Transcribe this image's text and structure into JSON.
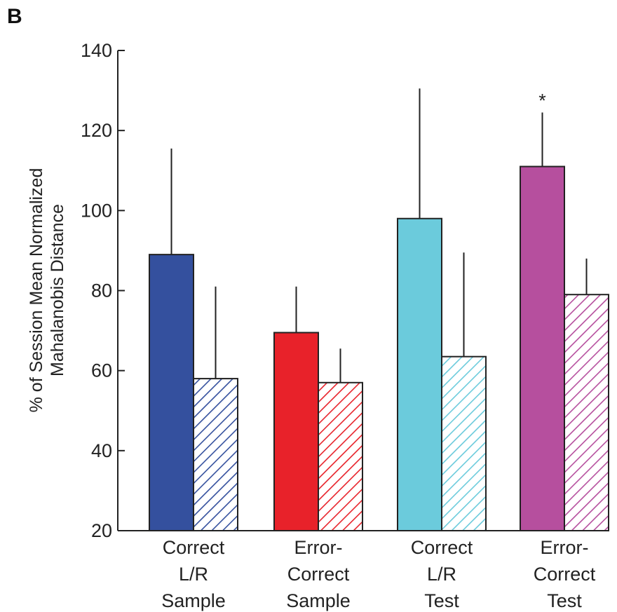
{
  "panel_label": "B",
  "chart_data": {
    "type": "bar",
    "ylabel_lines": [
      "% of Session Mean Normalized",
      "Mahalanobis Distance"
    ],
    "xlabel": "",
    "ylim": [
      20,
      140
    ],
    "yticks": [
      20,
      40,
      60,
      80,
      100,
      120,
      140
    ],
    "grid": false,
    "legend": "none",
    "categories": [
      {
        "lines": [
          "Correct",
          "L/R",
          "Sample"
        ],
        "color": "#34509e"
      },
      {
        "lines": [
          "Error-",
          "Correct",
          "Sample"
        ],
        "color": "#e8222a"
      },
      {
        "lines": [
          "Correct",
          "L/R",
          "Test"
        ],
        "color": "#6bcbdc"
      },
      {
        "lines": [
          "Error-",
          "Correct",
          "Test"
        ],
        "color": "#b64f9e"
      }
    ],
    "series": [
      {
        "fill": "solid",
        "values": [
          89,
          69.5,
          98,
          111
        ],
        "error_upper": [
          115.5,
          81,
          130.5,
          124.5
        ]
      },
      {
        "fill": "hatched",
        "values": [
          58,
          57,
          63.5,
          79
        ],
        "error_upper": [
          81,
          65.5,
          89.5,
          88
        ]
      }
    ],
    "annotations": [
      {
        "category_index": 3,
        "series_index": 0,
        "text": "*"
      }
    ]
  }
}
